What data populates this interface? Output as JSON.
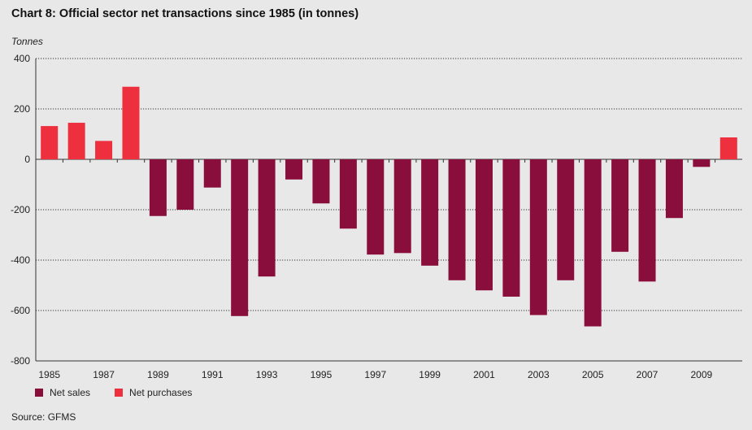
{
  "chart_data": {
    "type": "bar",
    "title": "Chart 8: Official sector net transactions since 1985 (in tonnes)",
    "ylabel": "Tonnes",
    "xlabel": "",
    "ylim": [
      -800,
      400
    ],
    "yticks": [
      400,
      200,
      0,
      -200,
      -400,
      -600,
      -800
    ],
    "x_tick_labels": [
      "1985",
      "1987",
      "1989",
      "1991",
      "1993",
      "1995",
      "1997",
      "1999",
      "2001",
      "2003",
      "2005",
      "2007",
      "2009"
    ],
    "grid": "horizontal dotted",
    "legend_position": "bottom-left",
    "categories": [
      1985,
      1986,
      1987,
      1988,
      1989,
      1990,
      1991,
      1992,
      1993,
      1994,
      1995,
      1996,
      1997,
      1998,
      1999,
      2000,
      2001,
      2002,
      2003,
      2004,
      2005,
      2006,
      2007,
      2008,
      2009,
      2010
    ],
    "values": [
      132,
      145,
      73,
      288,
      -225,
      -200,
      -112,
      -622,
      -465,
      -80,
      -175,
      -275,
      -378,
      -372,
      -422,
      -480,
      -520,
      -545,
      -618,
      -480,
      -663,
      -367,
      -485,
      -233,
      -30,
      87
    ],
    "series": [
      {
        "name": "Net sales",
        "color": "#8a0e3c"
      },
      {
        "name": "Net purchases",
        "color": "#ed2f3e"
      }
    ]
  },
  "source": "Source: GFMS"
}
